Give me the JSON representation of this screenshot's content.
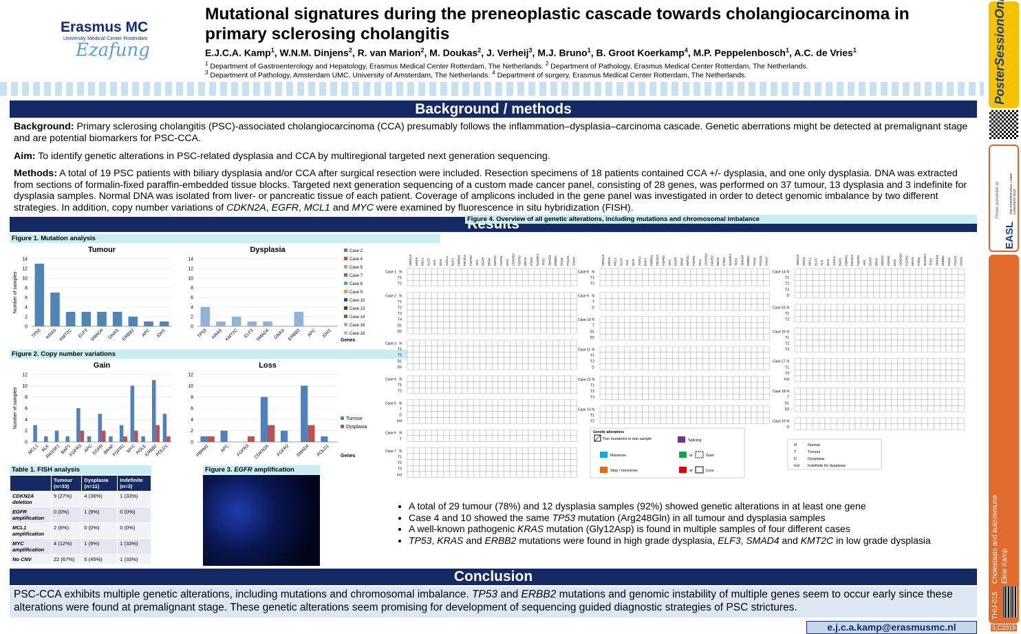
{
  "header": {
    "title": "Mutational signatures during the preneoplastic cascade towards cholangiocarcinoma in primary sclerosing cholangitis",
    "authors": [
      {
        "name": "E.J.C.A. Kamp",
        "sup": "1"
      },
      {
        "name": "W.N.M. Dinjens",
        "sup": "2"
      },
      {
        "name": "R. van Marion",
        "sup": "2"
      },
      {
        "name": "M. Doukas",
        "sup": "2"
      },
      {
        "name": "J. Verheij",
        "sup": "3"
      },
      {
        "name": "M.J. Bruno",
        "sup": "1"
      },
      {
        "name": "B. Groot Koerkamp",
        "sup": "4"
      },
      {
        "name": "M.P. Peppelenbosch",
        "sup": "1"
      },
      {
        "name": "A.C. de Vries",
        "sup": "1"
      }
    ],
    "affiliations": [
      [
        {
          "sup": "1",
          "text": " Department of Gastroenterology and Hepatology, Erasmus Medical Center Rotterdam, The Netherlands. "
        },
        {
          "sup": "2",
          "text": " Department of Pathology, Erasmus Medical Center Rotterdam, The Netherlands."
        }
      ],
      [
        {
          "sup": "3",
          "text": " Department of Pathology, Amsterdam UMC, University of Amsterdam, The Netherlands. "
        },
        {
          "sup": "4",
          "text": " Department of surgery, Erasmus Medical Center Rotterdam, The Netherlands."
        }
      ]
    ]
  },
  "logo": {
    "name": "Erasmus MC",
    "sub": "University Medical Center Rotterdam",
    "script": "Ezafung"
  },
  "sections": {
    "background": "Background / methods",
    "results": "Results",
    "conclusion": "Conclusion"
  },
  "background": [
    [
      {
        "text": "Background:",
        "bold": true
      },
      {
        "text": " Primary sclerosing cholangitis (PSC)-associated cholangiocarcinoma (CCA) presumably follows the inflammation–dysplasia–carcinoma cascade. Genetic aberrations might be detected at premalignant stage and are potential biomarkers for PSC-CCA."
      }
    ],
    [
      {
        "text": "Aim:",
        "bold": true
      },
      {
        "text": " To identify genetic alterations in PSC-related dysplasia and CCA by multiregional targeted next generation sequencing."
      }
    ],
    [
      {
        "text": "Methods:",
        "bold": true
      },
      {
        "text": " A total of 19 PSC patients with biliary dysplasia and/or CCA after surgical resection were included. Resection specimens of 18 patients contained CCA +/- dysplasia, and one only dysplasia. DNA was extracted from sections of formalin-fixed paraffin-embedded tissue blocks. Targeted next generation sequencing of a custom made cancer panel, consisting of 28 genes, was performed on 37 tumour, 13 dysplasia and 3 indefinite for dysplasia samples. Normal DNA was isolated from liver- or pancreatic tissue of each patient. Coverage of amplicons included in the gene panel was investigated in order to detect genomic imbalance by two different strategies. In addition, copy number variations of "
      },
      {
        "text": "CDKN2A",
        "italic": true
      },
      {
        "text": ", "
      },
      {
        "text": "EGFR",
        "italic": true
      },
      {
        "text": ", "
      },
      {
        "text": "MCL1",
        "italic": true
      },
      {
        "text": " and "
      },
      {
        "text": "MYC",
        "italic": true
      },
      {
        "text": " were examined by fluorescence in situ hybridization (FISH)."
      }
    ]
  ],
  "figures": {
    "fig1": [
      {
        "text": "Figure 1. Mutation analysis"
      }
    ],
    "fig2": [
      {
        "text": "Figure 2. Copy number variations"
      }
    ],
    "table1": [
      {
        "text": "Table 1. FISH analysis"
      }
    ],
    "fig3": [
      {
        "text": "Figure 3. "
      },
      {
        "text": "EGFR",
        "italic": true
      },
      {
        "text": " amplification"
      }
    ],
    "fig4": [
      {
        "text": "Figure 4. Overview of all genetic alterations, including mutations and chromosomal imbalance"
      }
    ]
  },
  "chart_data": [
    {
      "type": "bar",
      "title": "Tumour",
      "categories": [
        "TP53",
        "KRAS",
        "KMT2C",
        "ELF3",
        "SMAD4",
        "GNAS",
        "ERBB2",
        "APC",
        "IDH1"
      ],
      "values": [
        13,
        7,
        3,
        3,
        3,
        3,
        2,
        1,
        1
      ],
      "color": "#4f86b8",
      "ylim": [
        0,
        14
      ],
      "yticks": [
        0,
        2,
        4,
        6,
        8,
        10,
        12,
        14
      ],
      "ylabel": "Number of samples",
      "grid": true
    },
    {
      "type": "bar",
      "title": "Dysplasia",
      "categories": [
        "TP53",
        "KRAS",
        "KMT2C",
        "ELF3",
        "SMAD4",
        "GNAS",
        "ERBB2",
        "APC",
        "IDH1"
      ],
      "values": [
        4,
        1,
        2,
        1,
        1,
        0,
        3,
        0,
        0
      ],
      "color": "#8fb4d9",
      "ylim": [
        0,
        14
      ],
      "yticks": [
        0,
        2,
        4,
        6,
        8,
        10,
        12,
        14
      ],
      "xlabel": "Genes",
      "grid": true,
      "legend": [
        {
          "name": "Case 2",
          "color": "#4f81bd"
        },
        {
          "name": "Case 4",
          "color": "#c0504d"
        },
        {
          "name": "Case 5",
          "color": "#9bbb59"
        },
        {
          "name": "Case 7",
          "color": "#8064a2"
        },
        {
          "name": "Case 8",
          "color": "#4bacc6"
        },
        {
          "name": "Case 9",
          "color": "#f79646"
        },
        {
          "name": "Case 10",
          "color": "#2c4d75"
        },
        {
          "name": "Case 13",
          "color": "#772c2a"
        },
        {
          "name": "Case 14",
          "color": "#5f7530"
        },
        {
          "name": "Case 16",
          "color": "#b6a0cc"
        },
        {
          "name": "Case 18",
          "color": "#93cddd"
        }
      ]
    },
    {
      "type": "grouped-bar",
      "title": "Gain",
      "categories": [
        "MCL1",
        "ALK",
        "RASSF1",
        "BAP1",
        "FGFR3",
        "APC",
        "EGFR",
        "BRAF",
        "FGFR1",
        "MYC",
        "POLE",
        "ERBB2",
        "POLD1"
      ],
      "series": [
        {
          "name": "Tumour",
          "color": "#4f81bd",
          "values": [
            3,
            1,
            2,
            1,
            6,
            1,
            5,
            1,
            3,
            10,
            1,
            11,
            5
          ]
        },
        {
          "name": "Dysplasia",
          "color": "#c0504d",
          "values": [
            0,
            0,
            0,
            0,
            2,
            0,
            2,
            0,
            1,
            2,
            0,
            3,
            1
          ]
        }
      ],
      "ylim": [
        0,
        12
      ],
      "yticks": [
        0,
        2,
        4,
        6,
        8,
        10,
        12
      ],
      "ylabel": "Number of samples",
      "grid": true,
      "legend_shown": false
    },
    {
      "type": "grouped-bar",
      "title": "Loss",
      "categories": [
        "PBRM1",
        "APC",
        "FGFR3",
        "CDKN2A",
        "FGFR2",
        "SMAD4",
        "POLD1"
      ],
      "series": [
        {
          "name": "Tumour",
          "color": "#4f81bd",
          "values": [
            1,
            2,
            0,
            8,
            2,
            10,
            1
          ]
        },
        {
          "name": "Dysplasia",
          "color": "#c0504d",
          "values": [
            1,
            0,
            1,
            3,
            0,
            3,
            0
          ]
        }
      ],
      "ylim": [
        0,
        12
      ],
      "yticks": [
        0,
        2,
        4,
        6,
        8,
        10,
        12
      ],
      "xlabel": "Genes",
      "grid": true,
      "legend_shown": true
    }
  ],
  "table1": {
    "header": [
      "Tumour (n=33)",
      "Dysplasia (n=11)",
      "Indefinite (n=3)"
    ],
    "rows": [
      [
        "CDKN2A deletion",
        "9 (27%)",
        "4 (36%)",
        "1 (33%)"
      ],
      [
        "EGFR amplification",
        "0 (0%)",
        "1 (9%)",
        "0 (0%)"
      ],
      [
        "MCL1 amplification",
        "2 (6%)",
        "0 (0%)",
        "0 (0%)"
      ],
      [
        "MYC amplification",
        "4 (12%)",
        "1 (9%)",
        "1 (33%)"
      ],
      [
        "No CNV",
        "22 (67%)",
        "5 (45%)",
        "1 (33%)"
      ]
    ]
  },
  "figure4": {
    "genes": [
      "ARID1A",
      "KRAS",
      "MCL1",
      "ELF3",
      "ALK",
      "IDH1",
      "ASXL1",
      "BAP1",
      "PBRM1",
      "PIK3CA",
      "FGFR3",
      "APC",
      "EGFR",
      "BRAF",
      "KMT2C",
      "FGFR1",
      "MYC",
      "CDKN2A",
      "FGFR2",
      "NRAS",
      "PTEN",
      "RASSF1",
      "TP53",
      "SMAD4",
      "ERBB2",
      "POLE",
      "POLD1",
      "GNAS"
    ],
    "columns": [
      [
        {
          "name": "Case 1",
          "samples": [
            "N",
            "T1",
            "T2"
          ]
        },
        {
          "name": "Case 2",
          "samples": [
            "N",
            "T1",
            "T2",
            "T3",
            "T4",
            "D1",
            "D2"
          ]
        },
        {
          "name": "Case 3",
          "samples": [
            "N",
            "T1",
            "T2",
            "D1",
            "D2"
          ]
        },
        {
          "name": "Case 4",
          "samples": [
            "N",
            "T1",
            "T2"
          ]
        },
        {
          "name": "Case 5",
          "samples": [
            "N",
            "T",
            "D",
            "Ind"
          ]
        },
        {
          "name": "Case 6",
          "samples": [
            "N",
            "T"
          ]
        },
        {
          "name": "Case 7",
          "samples": [
            "N",
            "T1",
            "T2",
            "T3",
            "Ind"
          ]
        }
      ],
      [
        {
          "name": "Case 8",
          "samples": [
            "N",
            "T1",
            "T2"
          ]
        },
        {
          "name": "Case 9",
          "samples": [
            "N",
            "T",
            "D"
          ]
        },
        {
          "name": "Case 10",
          "samples": [
            "N",
            "T",
            "D1",
            "D2"
          ]
        },
        {
          "name": "Case 11",
          "samples": [
            "N",
            "T1",
            "T2",
            "D"
          ]
        },
        {
          "name": "Case 12",
          "samples": [
            "N",
            "T1",
            "T2",
            "T3"
          ]
        },
        {
          "name": "Case 13",
          "samples": [
            "N",
            "T1",
            "T2"
          ]
        }
      ],
      [
        {
          "name": "Case 14",
          "samples": [
            "N",
            "T1",
            "T2",
            "T3",
            "D"
          ]
        },
        {
          "name": "Case 15",
          "samples": [
            "N",
            "T1",
            "T2"
          ]
        },
        {
          "name": "Case 16",
          "samples": [
            "N",
            "T1",
            "T2",
            "T3"
          ]
        },
        {
          "name": "Case 17",
          "samples": [
            "N",
            "T1",
            "T2",
            "Ind"
          ]
        },
        {
          "name": "Case 18",
          "samples": [
            "N",
            "T",
            "D1",
            "D2"
          ]
        },
        {
          "name": "Case 19",
          "samples": [
            "N",
            "D"
          ]
        }
      ]
    ],
    "legend": {
      "title": "Genetic alterations",
      "two": "Two mutations in one sample",
      "splicing": "Splicing",
      "missense": "Missense",
      "gain": "Gain",
      "stop": "Stop / nonsense",
      "loss": "Loss",
      "or": "or"
    },
    "key": [
      {
        "code": "N",
        "label": "Normal"
      },
      {
        "code": "T",
        "label": "Tumour"
      },
      {
        "code": "D",
        "label": "Dysplasia"
      },
      {
        "code": "Ind",
        "label": "Indefinite for dysplasia"
      }
    ]
  },
  "bullets": [
    [
      {
        "text": "A total of 29 tumour (78%) and 12 dysplasia samples (92%) showed genetic alterations in at least one gene"
      }
    ],
    [
      {
        "text": "Case 4 and 10 showed the same "
      },
      {
        "text": "TP53",
        "italic": true
      },
      {
        "text": " mutation (Arg248Gln) in all tumour and dysplasia samples"
      }
    ],
    [
      {
        "text": "A well-known pathogenic "
      },
      {
        "text": "KRAS",
        "italic": true
      },
      {
        "text": " mutation (Gly12Asp) is found in multiple samples of four different cases"
      }
    ],
    [
      {
        "text": "TP53",
        "italic": true
      },
      {
        "text": ", "
      },
      {
        "text": "KRAS",
        "italic": true
      },
      {
        "text": " and "
      },
      {
        "text": "ERBB2",
        "italic": true
      },
      {
        "text": " mutations were found in high grade dysplasia, "
      },
      {
        "text": "ELF3",
        "italic": true
      },
      {
        "text": ", "
      },
      {
        "text": "SMAD4",
        "italic": true
      },
      {
        "text": " and "
      },
      {
        "text": "KMT2C",
        "italic": true
      },
      {
        "text": " in low grade dysplasia"
      }
    ]
  ],
  "conclusion": [
    {
      "text": "PSC-CCA exhibits multiple genetic alterations, including mutations and chromosomal imbalance. "
    },
    {
      "text": "TP53",
      "italic": true
    },
    {
      "text": " and "
    },
    {
      "text": "ERBB2",
      "italic": true
    },
    {
      "text": " mutations and genomic instability of multiple genes seem to occur early since these alterations were found at premalignant stage. These genetic alterations seem promising for development of sequencing guided diagnostic strategies of PSC strictures."
    }
  ],
  "email": "e.j.c.a.kamp@erasmusmc.nl",
  "sidebar": {
    "brand": "PosterSessionOnline",
    "presented": "Poster presented at:",
    "easl": "EASL",
    "congress": "THE INTERNATIONAL LIVER CONGRESS 2019",
    "topic": "Cholestasis and autoimmune",
    "author": "Eline Kamp",
    "code": "THU-015",
    "event": "ILC2019"
  }
}
